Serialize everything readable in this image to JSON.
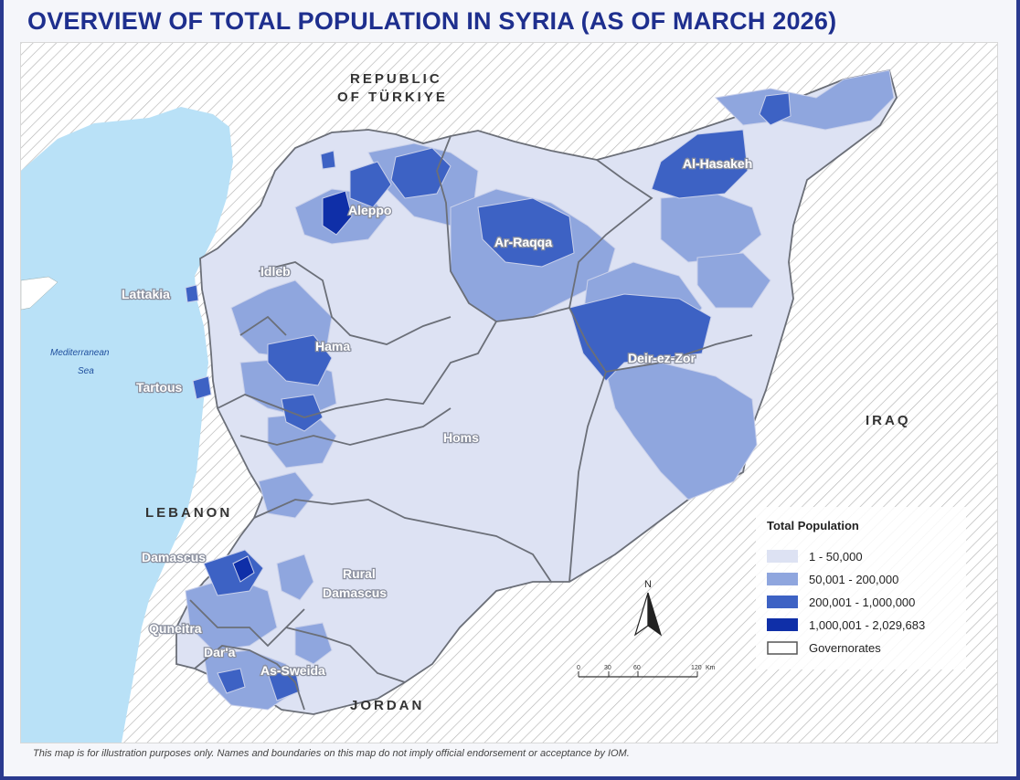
{
  "title": "OVERVIEW OF TOTAL POPULATION IN SYRIA (AS OF MARCH 2026)",
  "footer": "This map is for illustration purposes only. Names and boundaries on this map do not imply official endorsement or acceptance by IOM.",
  "countries": {
    "turkiye_1": "REPUBLIC",
    "turkiye_2": "OF TÜRKIYE",
    "iraq": "IRAQ",
    "lebanon": "LEBANON",
    "jordan": "JORDAN"
  },
  "sea": {
    "line1": "Mediterranean",
    "line2": "Sea"
  },
  "governorates": {
    "aleppo": "Aleppo",
    "idleb": "Idleb",
    "lattakia": "Lattakia",
    "hama": "Hama",
    "tartous": "Tartous",
    "ar_raqqa": "Ar-Raqqa",
    "al_hasakeh": "Al-Hasakeh",
    "deir_ez_zor": "Deir-ez-Zor",
    "homs": "Homs",
    "rural_damascus_1": "Rural",
    "rural_damascus_2": "Damascus",
    "damascus": "Damascus",
    "quneitra": "Quneitra",
    "dara": "Dar'a",
    "as_sweida": "As-Sweida"
  },
  "legend": {
    "title": "Total Population",
    "classes": [
      {
        "label": "1 - 50,000",
        "color": "#dde2f3"
      },
      {
        "label": "50,001 - 200,000",
        "color": "#8fa6de"
      },
      {
        "label": "200,001 - 1,000,000",
        "color": "#3d62c4"
      },
      {
        "label": "1,000,001 - 2,029,683",
        "color": "#0f2fa8"
      }
    ],
    "boundary_label": "Governorates"
  },
  "north_arrow": "N",
  "scale_bar": {
    "ticks": [
      "0",
      "30",
      "60",
      "120"
    ],
    "unit": "Km"
  },
  "colors": {
    "title": "#1e2f8e",
    "sea": "#b9e1f7",
    "hatch": "#a8a8a8",
    "boundary": "#6b6f78"
  }
}
